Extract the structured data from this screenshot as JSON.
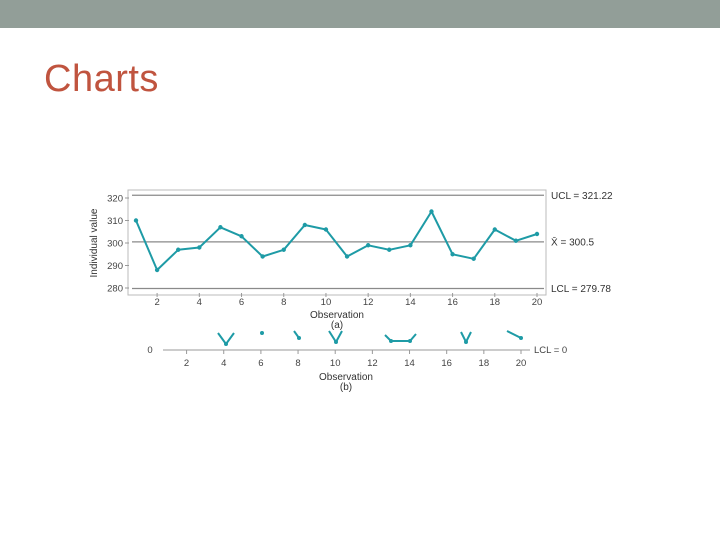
{
  "slide": {
    "title": "Charts"
  },
  "colors": {
    "title": "#c0543f",
    "topbar": "#929e98",
    "series": "#1e9ba6",
    "limit_line": "#8a8a8a"
  },
  "chart_data": [
    {
      "type": "line",
      "xlabel": "Observation",
      "sublabel": "(a)",
      "ylabel": "Individual value",
      "xlim": [
        1,
        20
      ],
      "ylim": [
        280,
        320
      ],
      "yticks": [
        280,
        290,
        300,
        310,
        320
      ],
      "yticklabels": [
        "280",
        "290",
        "300",
        "310",
        "320"
      ],
      "xticks": [
        2,
        4,
        6,
        8,
        10,
        12,
        14,
        16,
        18,
        20
      ],
      "grid": false,
      "x": [
        1,
        2,
        3,
        4,
        5,
        6,
        7,
        8,
        9,
        10,
        11,
        12,
        13,
        14,
        15,
        16,
        17,
        18,
        19,
        20
      ],
      "values": [
        310,
        288,
        297,
        298,
        307,
        303,
        294,
        297,
        308,
        306,
        294,
        299,
        297,
        299,
        314,
        295,
        293,
        306,
        301,
        304
      ],
      "limits": [
        {
          "label": "UCL = 321.22",
          "value": 321.22
        },
        {
          "label": "X̄ = 300.5",
          "value": 300.5
        },
        {
          "label": "LCL = 279.78",
          "value": 279.78
        }
      ]
    },
    {
      "type": "line",
      "xlabel": "Observation",
      "sublabel": "(b)",
      "xlim": [
        1,
        20
      ],
      "xticks": [
        2,
        4,
        6,
        8,
        10,
        12,
        14,
        16,
        18,
        20
      ],
      "left_label": "0",
      "right_label": "LCL = 0"
    }
  ]
}
